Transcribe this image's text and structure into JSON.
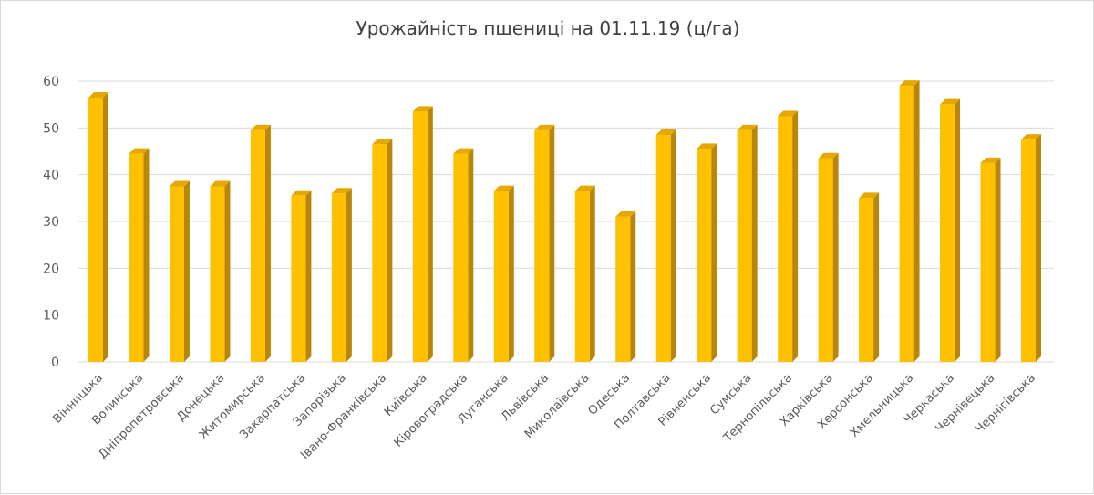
{
  "chart_data": {
    "type": "bar",
    "title": "Урожайність пшениці на 01.11.19 (ц/га)",
    "xlabel": "",
    "ylabel": "",
    "ylim": [
      0,
      60
    ],
    "yticks": [
      0,
      10,
      20,
      30,
      40,
      50,
      60
    ],
    "grid": true,
    "legend": "none",
    "bar_color": "#FFC000",
    "bar_side_color": "#B8860B",
    "categories": [
      "Вінницька",
      "Волинська",
      "Дніпропетровська",
      "Донецька",
      "Житомирська",
      "Закарпатська",
      "Запорізька",
      "Івано-Франківська",
      "Київська",
      "Кіровоградська",
      "Луганська",
      "Львівська",
      "Миколаївська",
      "Одеська",
      "Полтавська",
      "Рівненська",
      "Сумська",
      "Тернопільська",
      "Харківська",
      "Херсонська",
      "Хмельницька",
      "Черкаська",
      "Чернівецька",
      "Чернігівська"
    ],
    "values": [
      56.5,
      44.5,
      37.5,
      37.5,
      49.5,
      35.5,
      36,
      46.5,
      53.5,
      44.5,
      36.5,
      49.5,
      36.5,
      31,
      48.5,
      45.5,
      49.5,
      52.5,
      43.5,
      35,
      59,
      55,
      42.5,
      47.5
    ]
  }
}
